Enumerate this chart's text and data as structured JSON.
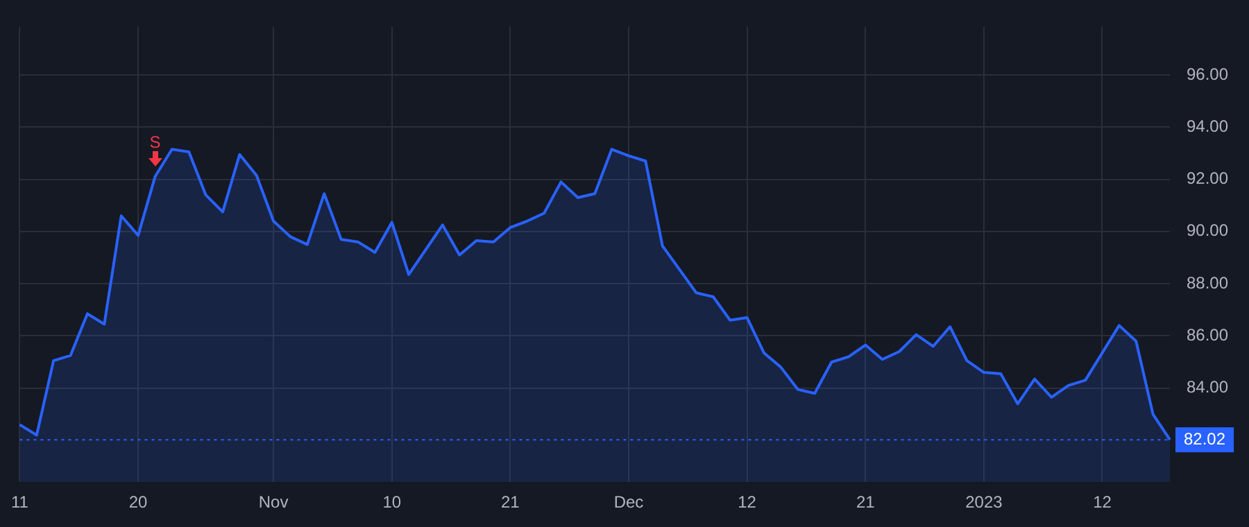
{
  "chart_data": {
    "type": "area",
    "categories": [
      "11",
      null,
      null,
      null,
      null,
      null,
      null,
      "20",
      null,
      null,
      null,
      null,
      null,
      null,
      null,
      "Nov",
      null,
      null,
      null,
      null,
      null,
      null,
      "10",
      null,
      null,
      null,
      null,
      null,
      null,
      "21",
      null,
      null,
      null,
      null,
      null,
      null,
      "Dec",
      null,
      null,
      null,
      null,
      null,
      null,
      "12",
      null,
      null,
      null,
      null,
      null,
      null,
      "21",
      null,
      null,
      null,
      null,
      null,
      null,
      "2023",
      null,
      null,
      null,
      null,
      null,
      null,
      "12",
      null,
      null,
      null,
      null
    ],
    "series": [
      {
        "color": "#2962ff",
        "values": [
          82.6,
          82.2,
          85.05,
          85.25,
          86.85,
          86.45,
          90.6,
          89.85,
          92.1,
          93.15,
          93.05,
          91.4,
          90.75,
          92.95,
          92.15,
          90.4,
          89.8,
          89.5,
          91.45,
          89.7,
          89.6,
          89.2,
          90.35,
          88.35,
          89.3,
          90.25,
          89.1,
          89.65,
          89.6,
          90.15,
          90.4,
          90.7,
          91.9,
          91.3,
          91.45,
          93.15,
          92.9,
          92.7,
          89.45,
          88.55,
          87.65,
          87.5,
          86.6,
          86.7,
          85.35,
          84.8,
          83.95,
          83.8,
          85.0,
          85.2,
          85.65,
          85.1,
          85.4,
          86.05,
          85.6,
          86.35,
          85.05,
          84.6,
          84.55,
          83.4,
          84.35,
          83.65,
          84.1,
          84.3,
          85.35,
          86.4,
          85.8,
          83.0,
          82.02
        ]
      }
    ],
    "ylim": [
      80.4,
      97.85
    ],
    "yticks": [
      {
        "value": 84,
        "label": "84.00"
      },
      {
        "value": 86,
        "label": "86.00"
      },
      {
        "value": 88,
        "label": "88.00"
      },
      {
        "value": 90,
        "label": "90.00"
      },
      {
        "value": 92,
        "label": "92.00"
      },
      {
        "value": 94,
        "label": "94.00"
      },
      {
        "value": 96,
        "label": "96.00"
      }
    ],
    "ref_lines": [
      {
        "axis": "y",
        "value": 82.02,
        "label": "82.02",
        "color": "#2962ff",
        "line_style": "dotted"
      }
    ],
    "annotations": [
      "S"
    ],
    "grid": true,
    "legend": false
  }
}
